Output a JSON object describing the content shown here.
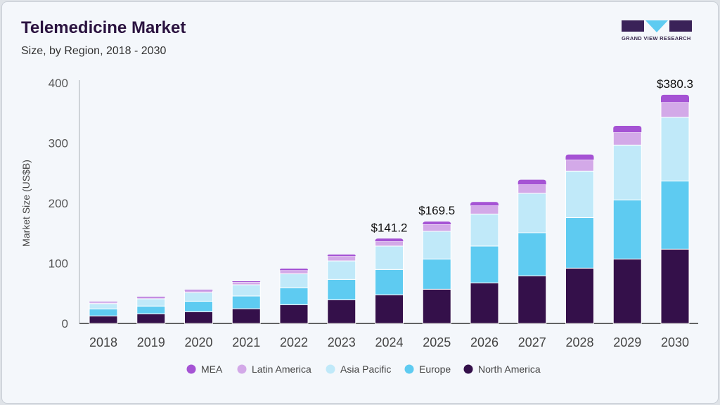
{
  "header": {
    "title": "Telemedicine Market",
    "subtitle": "Size, by Region, 2018 - 2030"
  },
  "logo": {
    "text": "GRAND VIEW RESEARCH"
  },
  "chart_data": {
    "type": "bar",
    "stacked": true,
    "title": "Telemedicine Market",
    "subtitle": "Size, by Region, 2018 - 2030",
    "xlabel": "",
    "ylabel": "Market Size (US$B)",
    "ylim": [
      0,
      400
    ],
    "yticks": [
      "0",
      "100",
      "200",
      "300",
      "400"
    ],
    "grid": false,
    "legend_position": "bottom",
    "categories": [
      "2018",
      "2019",
      "2020",
      "2021",
      "2022",
      "2023",
      "2024",
      "2025",
      "2026",
      "2027",
      "2028",
      "2029",
      "2030"
    ],
    "series": [
      {
        "name": "North America",
        "color": "#34104a",
        "values": [
          12.5,
          16.0,
          19.5,
          24.5,
          31.2,
          39.4,
          47.6,
          56.9,
          67.5,
          79.2,
          92.0,
          107.2,
          123.6
        ]
      },
      {
        "name": "Europe",
        "color": "#5ecbf1",
        "values": [
          11.7,
          12.9,
          17.5,
          21.1,
          28.1,
          33.9,
          42.1,
          50.3,
          61.2,
          71.7,
          84.0,
          98.3,
          113.4
        ]
      },
      {
        "name": "Asia Pacific",
        "color": "#c0e9f9",
        "values": [
          8.9,
          12.0,
          14.5,
          18.7,
          23.3,
          30.7,
          39.0,
          46.0,
          53.3,
          65.5,
          77.4,
          91.2,
          106.0
        ]
      },
      {
        "name": "Latin America",
        "color": "#d3a9e8",
        "values": [
          1.9,
          2.0,
          3.1,
          4.7,
          5.9,
          8.0,
          7.8,
          11.7,
          14.0,
          14.8,
          19.1,
          21.3,
          25.0
        ]
      },
      {
        "name": "MEA",
        "color": "#a553d4",
        "values": [
          0.9,
          1.5,
          1.4,
          1.2,
          2.7,
          2.6,
          4.7,
          4.6,
          6.0,
          7.8,
          8.5,
          10.6,
          12.3
        ]
      }
    ],
    "data_labels": [
      {
        "category": "2024",
        "text": "$141.2"
      },
      {
        "category": "2025",
        "text": "$169.5"
      },
      {
        "category": "2030",
        "text": "$380.3"
      }
    ],
    "legend": [
      "MEA",
      "Latin America",
      "Asia Pacific",
      "Europe",
      "North America"
    ]
  }
}
